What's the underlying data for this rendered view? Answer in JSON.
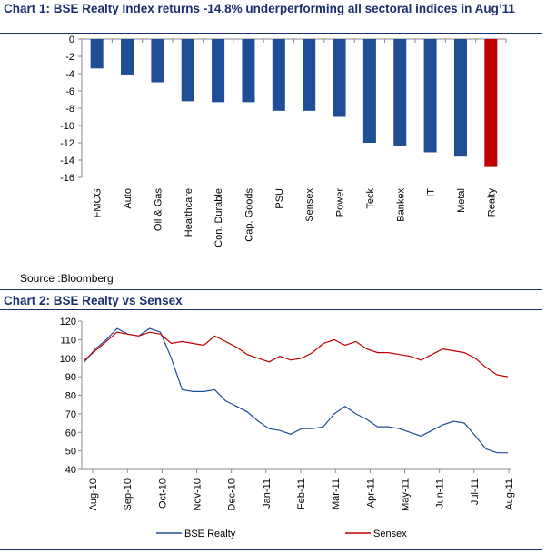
{
  "charts_meta": {
    "chart1_title": "Chart 1: BSE Realty Index returns -14.8% underperforming all sectoral indices in Aug’11",
    "chart1_source": "Source :Bloomberg",
    "chart2_title": "Chart 2: BSE Realty vs Sensex"
  },
  "colors": {
    "title": "#1a2f6e",
    "bar": "#1f4e96",
    "bar_highlight": "#c00000",
    "realty_line": "#1f4e96",
    "sensex_line": "#c00000"
  },
  "chart_data": [
    {
      "type": "bar",
      "title": "Chart 1: BSE Realty Index returns -14.8% underperforming all sectoral indices in Aug’11",
      "categories": [
        "FMCG",
        "Auto",
        "Oil & Gas",
        "Healthcare",
        "Con. Durable",
        "Cap. Goods",
        "PSU",
        "Sensex",
        "Power",
        "Teck",
        "Bankex",
        "IT",
        "Metal",
        "Realty"
      ],
      "values": [
        -3.4,
        -4.1,
        -5.0,
        -7.2,
        -7.3,
        -7.3,
        -8.3,
        -8.3,
        -9.0,
        -12.0,
        -12.4,
        -13.1,
        -13.6,
        -14.8
      ],
      "highlight": "Realty",
      "ylim": [
        -16,
        0
      ],
      "yticks": [
        0,
        -2,
        -4,
        -6,
        -8,
        -10,
        -12,
        -14,
        -16
      ],
      "xlabel": "",
      "ylabel": "",
      "grid": false
    },
    {
      "type": "line",
      "title": "Chart 2: BSE Realty vs Sensex",
      "x": [
        "Aug-10",
        "Aug-10",
        "Sep-10",
        "Sep-10",
        "Sep-10",
        "Oct-10",
        "Oct-10",
        "Oct-10",
        "Nov-10",
        "Nov-10",
        "Nov-10",
        "Nov-10",
        "Dec-10",
        "Dec-10",
        "Dec-10",
        "Dec-10",
        "Jan-11",
        "Jan-11",
        "Jan-11",
        "Feb-11",
        "Feb-11",
        "Feb-11",
        "Mar-11",
        "Mar-11",
        "Mar-11",
        "Apr-11",
        "Apr-11",
        "Apr-11",
        "May-11",
        "May-11",
        "May-11",
        "Jun-11",
        "Jun-11",
        "Jun-11",
        "Jul-11",
        "Jul-11",
        "Jul-11",
        "Aug-11",
        "Aug-11",
        "Aug-11"
      ],
      "xticks": [
        "Aug-10",
        "Sep-10",
        "Oct-10",
        "Nov-10",
        "Dec-10",
        "Jan-11",
        "Feb-11",
        "Mar-11",
        "Apr-11",
        "May-11",
        "Jun-11",
        "Jul-11",
        "Aug-11"
      ],
      "series": [
        {
          "name": "BSE Realty",
          "values": [
            98,
            105,
            110,
            116,
            113,
            112,
            116,
            114,
            100,
            83,
            82,
            82,
            83,
            77,
            74,
            71,
            66,
            62,
            61,
            59,
            62,
            62,
            63,
            70,
            74,
            70,
            67,
            63,
            63,
            62,
            60,
            58,
            61,
            64,
            66,
            65,
            58,
            51,
            49,
            49
          ]
        },
        {
          "name": "Sensex",
          "values": [
            99,
            104,
            109,
            114,
            113,
            112,
            114,
            113,
            108,
            109,
            108,
            107,
            112,
            109,
            106,
            102,
            100,
            98,
            101,
            99,
            100,
            103,
            108,
            110,
            107,
            109,
            105,
            103,
            103,
            102,
            101,
            99,
            102,
            105,
            104,
            103,
            100,
            95,
            91,
            90
          ]
        }
      ],
      "ylim": [
        40,
        120
      ],
      "yticks": [
        40,
        50,
        60,
        70,
        80,
        90,
        100,
        110,
        120
      ],
      "legend": "bottom",
      "grid": false
    }
  ]
}
